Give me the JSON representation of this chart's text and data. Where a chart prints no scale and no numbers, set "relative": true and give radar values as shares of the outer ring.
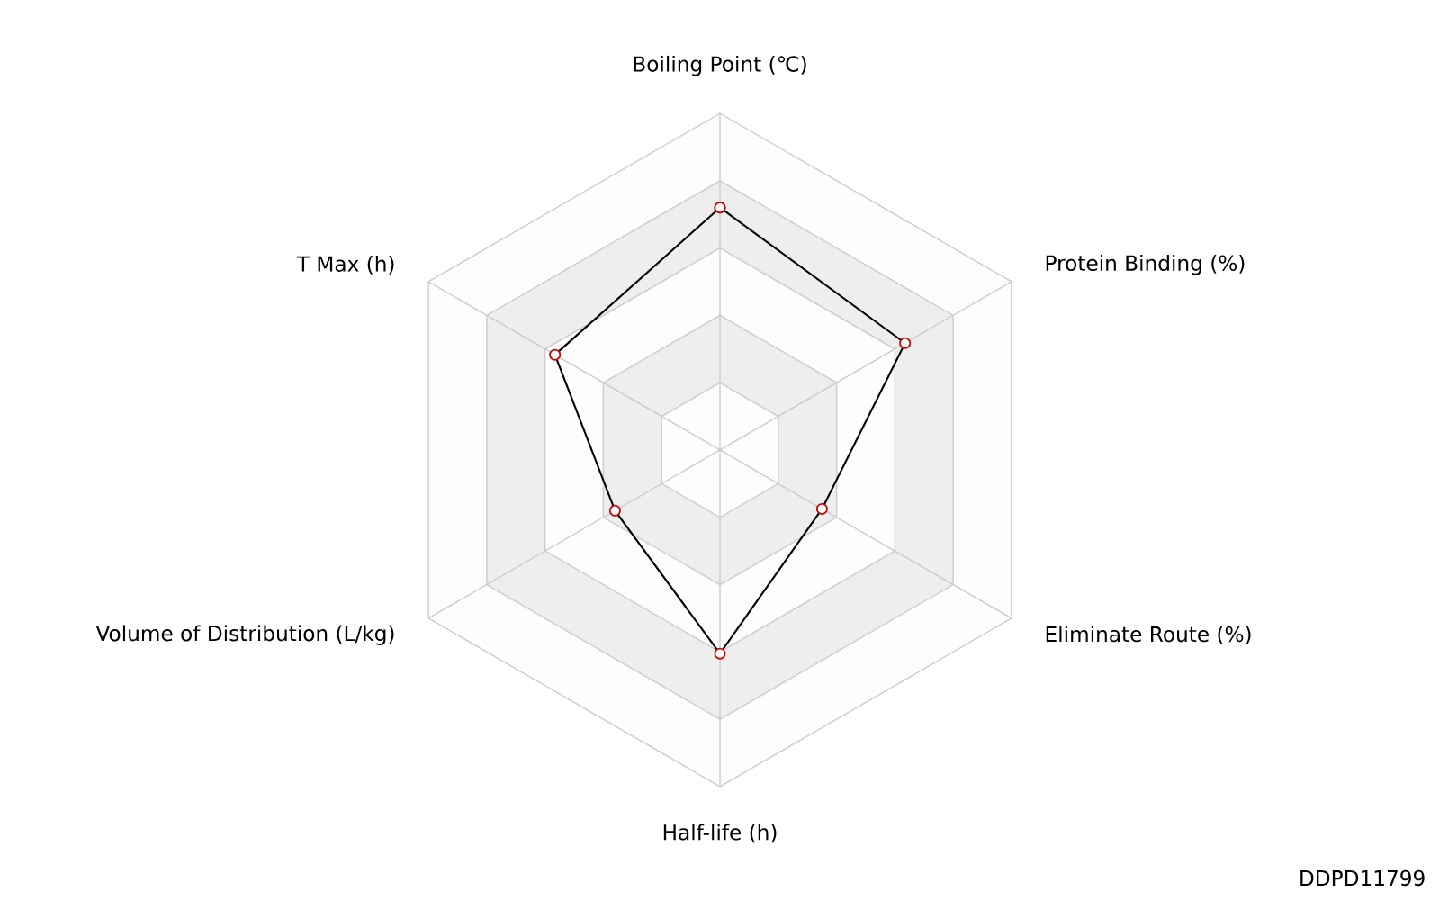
{
  "chart_data": {
    "type": "radar",
    "relative": true,
    "categories": [
      "Boiling Point (℃)",
      "Protein Binding (%)",
      "Eliminate Route (%)",
      "Half-life (h)",
      "Volume of Distribution (L/kg)",
      "T Max (h)"
    ],
    "series": [
      {
        "color": "#000000",
        "values": [
          0.72,
          0.635,
          0.35,
          0.605,
          0.36,
          0.566
        ]
      }
    ],
    "marker": "circle",
    "annotations": [
      "DDPD11799"
    ]
  }
}
